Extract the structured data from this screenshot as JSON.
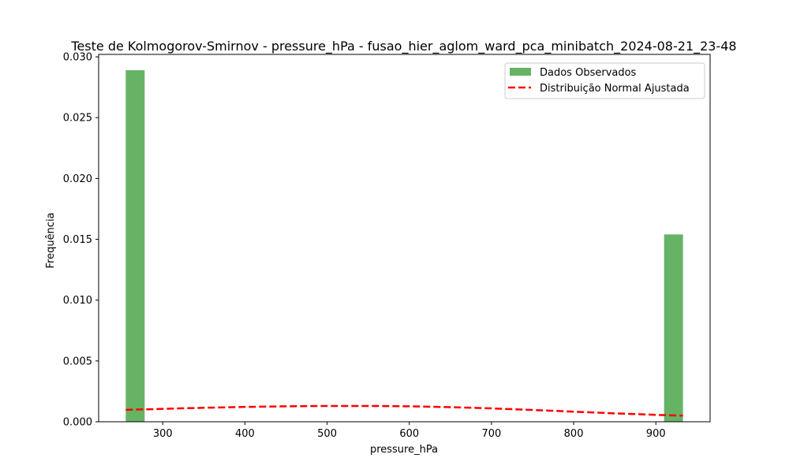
{
  "chart_data": {
    "type": "bar",
    "title": "Teste de Kolmogorov-Smirnov - pressure_hPa - fusao_hier_aglom_ward_pca_minibatch_2024-08-21_23-48",
    "xlabel": "pressure_hPa",
    "ylabel": "Frequência",
    "xlim": [
      222,
      966
    ],
    "ylim": [
      0,
      0.0302
    ],
    "xticks": [
      300,
      400,
      500,
      600,
      700,
      800,
      900
    ],
    "xtick_labels": [
      "300",
      "400",
      "500",
      "600",
      "700",
      "800",
      "900"
    ],
    "yticks": [
      0,
      0.005,
      0.01,
      0.015,
      0.02,
      0.025,
      0.03
    ],
    "ytick_labels": [
      "0.000",
      "0.005",
      "0.010",
      "0.015",
      "0.020",
      "0.025",
      "0.030"
    ],
    "grid": false,
    "legend_position": "top-right",
    "series": [
      {
        "name": "Dados Observados",
        "type": "histogram",
        "color": "#66b366",
        "bins": [
          {
            "x0": 255,
            "x1": 278,
            "value": 0.0289
          },
          {
            "x0": 910,
            "x1": 933,
            "value": 0.0154
          }
        ]
      },
      {
        "name": "Distribuição Normal Ajustada",
        "type": "line",
        "style": "dashed",
        "color": "#ff0000",
        "x": [
          255,
          300,
          350,
          400,
          450,
          500,
          550,
          600,
          650,
          700,
          750,
          800,
          850,
          900,
          933
        ],
        "y": [
          0.00098,
          0.00106,
          0.00115,
          0.00122,
          0.00127,
          0.0013,
          0.0013,
          0.00127,
          0.0012,
          0.0011,
          0.00097,
          0.00083,
          0.00069,
          0.00057,
          0.0005
        ]
      }
    ]
  }
}
